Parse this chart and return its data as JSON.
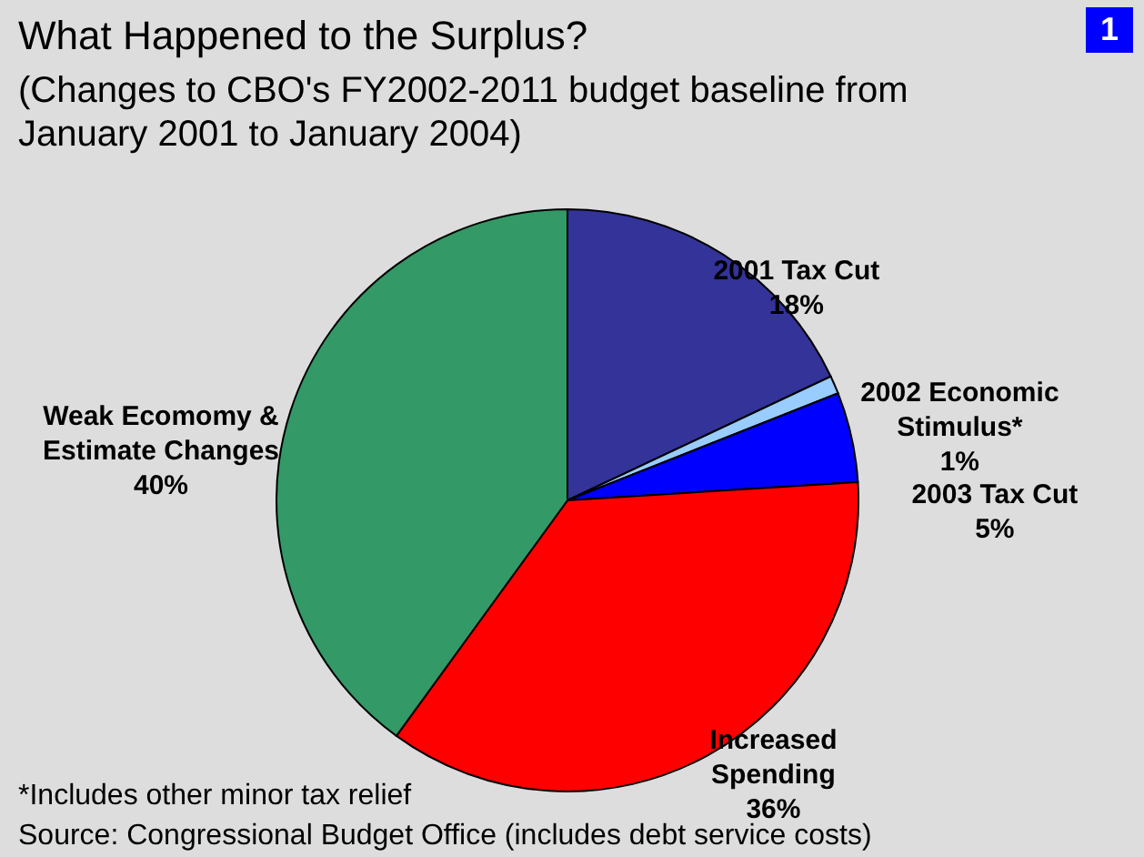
{
  "chart_data": {
    "type": "pie",
    "title": "What Happened to the Surplus?",
    "subtitle": "(Changes to CBO's FY2002-2011 budget baseline from January 2001 to January 2004)",
    "categories": [
      "2001 Tax Cut",
      "2002 Economic Stimulus*",
      "2003 Tax Cut",
      "Increased Spending",
      "Weak Ecomomy & Estimate Changes"
    ],
    "values": [
      18,
      1,
      5,
      36,
      40
    ],
    "value_labels": [
      "18%",
      "1%",
      "5%",
      "36%",
      "40%"
    ],
    "colors": [
      "#333399",
      "#99ccff",
      "#0000ff",
      "#ff0000",
      "#339966"
    ],
    "annotations": [
      "1",
      "*Includes other minor tax relief",
      "Source: Congressional Budget Office (includes debt service costs)"
    ]
  }
}
